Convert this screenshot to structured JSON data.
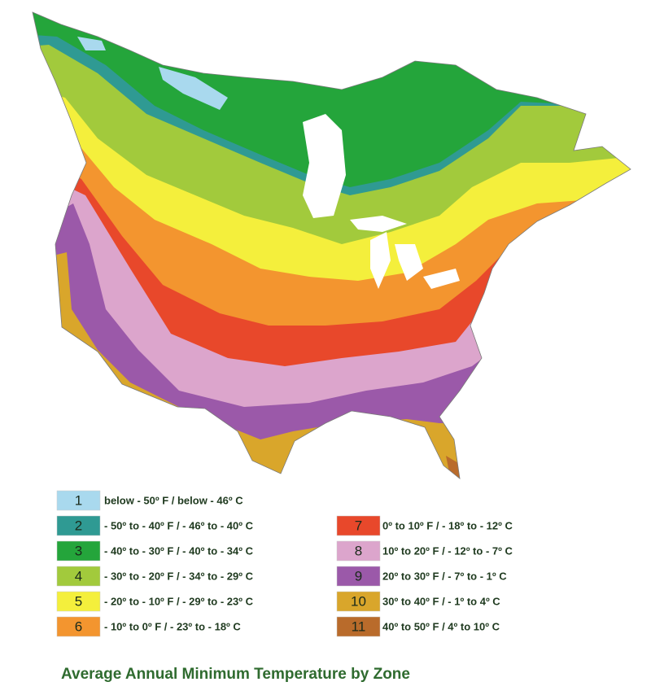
{
  "title": "Average Annual Minimum Temperature by Zone",
  "legend": [
    {
      "zone": "1",
      "label": "below - 50º F / below - 46º C",
      "color": "#a9d9ee"
    },
    {
      "zone": "2",
      "label": "- 50º to - 40º F / - 46º to - 40º C",
      "color": "#2f9a93"
    },
    {
      "zone": "3",
      "label": "- 40º to - 30º F / - 40º to - 34º C",
      "color": "#24a53b"
    },
    {
      "zone": "4",
      "label": "- 30º to - 20º F / - 34º to - 29º C",
      "color": "#a2ca3c"
    },
    {
      "zone": "5",
      "label": "- 20º to - 10º F / - 29º to - 23º C",
      "color": "#f4ef3c"
    },
    {
      "zone": "6",
      "label": "- 10º to 0º F / - 23º to - 18º C",
      "color": "#f3952f"
    },
    {
      "zone": "7",
      "label": "0º to 10º F / - 18º to - 12º C",
      "color": "#e8482b"
    },
    {
      "zone": "8",
      "label": "10º to 20º F / - 12º to - 7º C",
      "color": "#dca5cc"
    },
    {
      "zone": "9",
      "label": "20º to 30º F / - 7º to - 1º C",
      "color": "#9b59a9"
    },
    {
      "zone": "10",
      "label": "30º to 40º F / - 1º to 4º C",
      "color": "#d9a62b"
    },
    {
      "zone": "11",
      "label": "40º to 50º F / 4º to 10º C",
      "color": "#b96b2b"
    }
  ]
}
